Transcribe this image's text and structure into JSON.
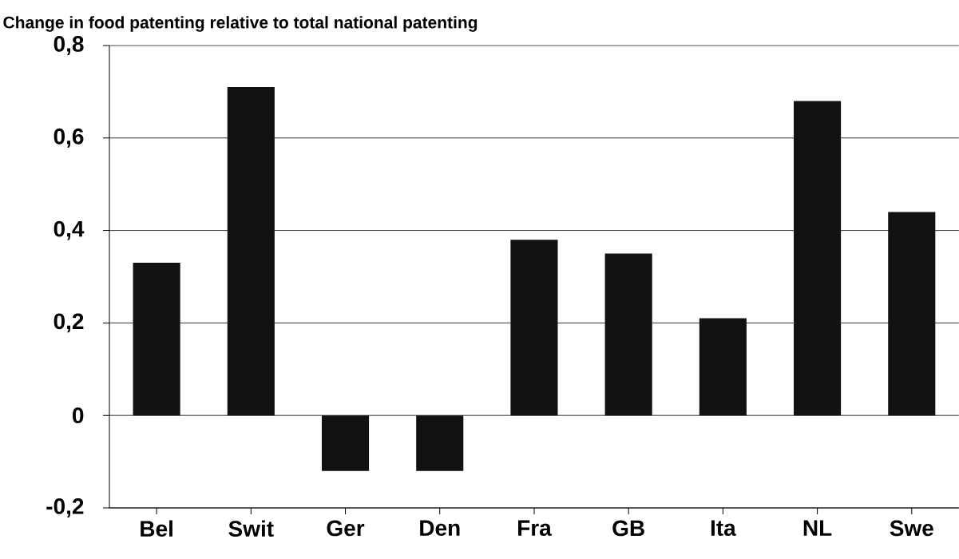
{
  "chart_data": {
    "type": "bar",
    "title": "Change in food patenting relative to total national patenting",
    "categories": [
      "Bel",
      "Swit",
      "Ger",
      "Den",
      "Fra",
      "GB",
      "Ita",
      "NL",
      "Swe"
    ],
    "values": [
      0.33,
      0.71,
      -0.12,
      -0.12,
      0.38,
      0.35,
      0.21,
      0.68,
      0.44
    ],
    "color": "#111111",
    "ylim": [
      -0.2,
      0.8
    ],
    "yticks": [
      {
        "value": -0.2,
        "label": "-0,2"
      },
      0,
      {
        "value": 0.2,
        "label": "0,2"
      },
      {
        "value": 0.4,
        "label": "0,4"
      },
      {
        "value": 0.6,
        "label": "0,6"
      },
      {
        "value": 0.8,
        "label": "0,8"
      }
    ],
    "grid": "y"
  }
}
